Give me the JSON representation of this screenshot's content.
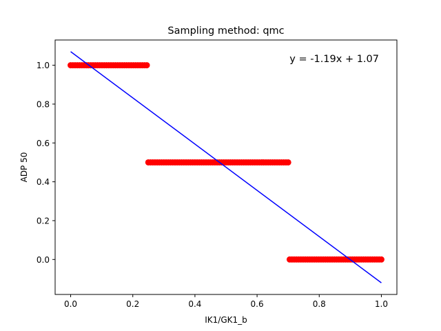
{
  "chart_data": {
    "type": "scatter",
    "title": "Sampling method: qmc",
    "xlabel": "IK1/GK1_b",
    "ylabel": "ADP 50",
    "xlim": [
      -0.05,
      1.05
    ],
    "ylim": [
      -0.18,
      1.13
    ],
    "xticks": [
      0.0,
      0.2,
      0.4,
      0.6,
      0.8,
      1.0
    ],
    "xtick_labels": [
      "0.0",
      "0.2",
      "0.4",
      "0.6",
      "0.8",
      "1.0"
    ],
    "yticks": [
      0.0,
      0.2,
      0.4,
      0.6,
      0.8,
      1.0
    ],
    "ytick_labels": [
      "0.0",
      "0.2",
      "0.4",
      "0.6",
      "0.8",
      "1.0"
    ],
    "grid": false,
    "series": [
      {
        "color": "#ff0000",
        "segments": [
          {
            "x_start": 0.0,
            "x_end": 0.245,
            "y": 1.0
          },
          {
            "x_start": 0.25,
            "x_end": 0.7,
            "y": 0.5
          },
          {
            "x_start": 0.705,
            "x_end": 1.0,
            "y": 0.0
          }
        ]
      }
    ],
    "fit_line": {
      "color": "#0000ff",
      "slope": -1.19,
      "intercept": 1.07,
      "x_range": [
        0.0,
        1.0
      ]
    },
    "annotation": {
      "text": "y = -1.19x + 1.07",
      "placement": "top-right"
    }
  }
}
